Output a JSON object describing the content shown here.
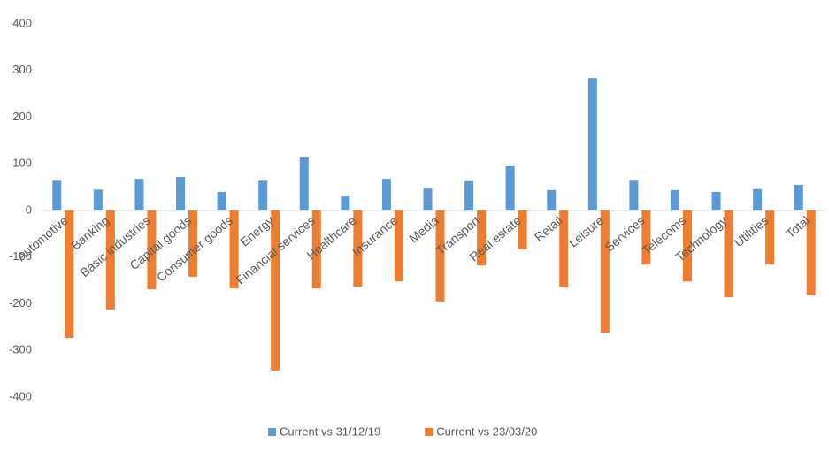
{
  "chart_data": {
    "type": "bar",
    "categories": [
      "Automotive",
      "Banking",
      "Basic industries",
      "Capital goods",
      "Consumer goods",
      "Energy",
      "Financial services",
      "Healthcare",
      "Insurance",
      "Media",
      "Transport",
      "Real estate",
      "Retail",
      "Leisure",
      "Services",
      "Telecoms",
      "Technology",
      "Utilities",
      "Total"
    ],
    "series": [
      {
        "name": "Current vs 31/12/19",
        "color": "#5b9bd5",
        "values": [
          64,
          45,
          68,
          72,
          40,
          64,
          114,
          30,
          68,
          47,
          63,
          95,
          44,
          284,
          64,
          44,
          40,
          46,
          55
        ]
      },
      {
        "name": "Current vs 23/03/20",
        "color": "#ed7d31",
        "values": [
          -273,
          -212,
          -169,
          -142,
          -167,
          -343,
          -167,
          -163,
          -152,
          -195,
          -118,
          -83,
          -165,
          -262,
          -116,
          -152,
          -186,
          -116,
          -182
        ]
      }
    ],
    "ylim": [
      -400,
      400
    ],
    "yticks": [
      -400,
      -300,
      -200,
      -100,
      0,
      100,
      200,
      300,
      400
    ],
    "grid": false,
    "legend": "bottom"
  }
}
